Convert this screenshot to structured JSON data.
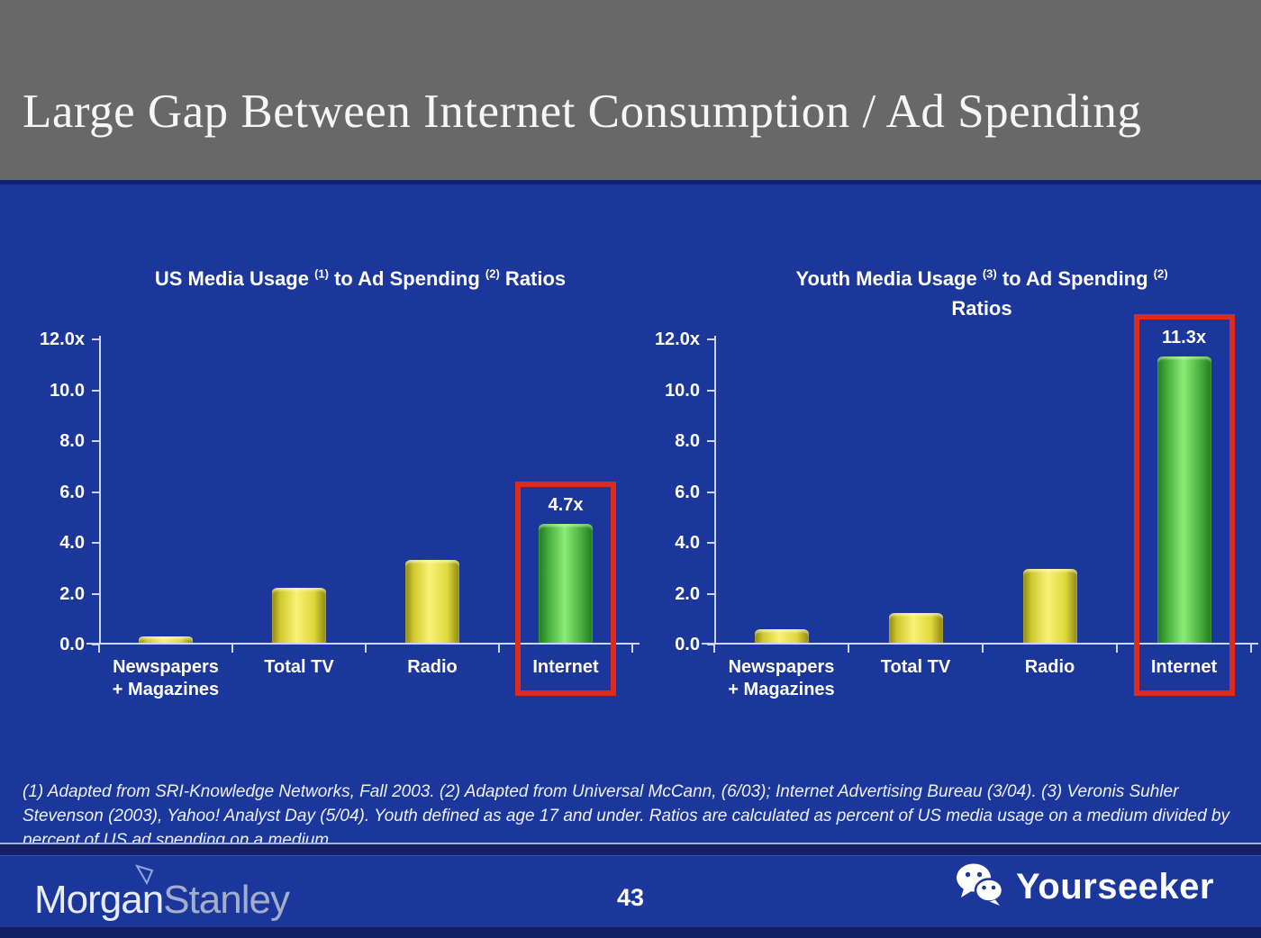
{
  "header": {
    "title": "Large Gap Between Internet Consumption / Ad Spending"
  },
  "colors": {
    "header_bg": "#686868",
    "slide_bg": "#1b379b",
    "accent_red": "#df2b1e",
    "axis": "#ccd6f2",
    "bar_yellow": "#f2ec55",
    "bar_green": "#63d452",
    "separator_dark": "#121f63",
    "footnote_text": "#eef1fa",
    "brand_bright": "#e8ecf8",
    "brand_dim": "#a3aecb",
    "text": "#ffffff"
  },
  "chart_data": [
    {
      "type": "bar",
      "title": "US Media Usage (1) to Ad Spending (2) Ratios",
      "title_parts": [
        {
          "t": "US Media Usage "
        },
        {
          "t": "(1)",
          "sup": true
        },
        {
          "t": " to Ad Spending "
        },
        {
          "t": "(2)",
          "sup": true
        },
        {
          "t": " Ratios"
        }
      ],
      "categories": [
        "Newspapers + Magazines",
        "Total TV",
        "Radio",
        "Internet"
      ],
      "category_lines": [
        [
          "Newspapers",
          "+ Magazines"
        ],
        [
          "Total TV"
        ],
        [
          "Radio"
        ],
        [
          "Internet"
        ]
      ],
      "values": [
        0.3,
        2.2,
        3.3,
        4.7
      ],
      "bar_colors": [
        "yellow",
        "yellow",
        "yellow",
        "green"
      ],
      "value_labels": [
        "",
        "",
        "",
        "4.7x"
      ],
      "highlight_index": 3,
      "xlabel": "",
      "ylabel": "",
      "ylim": [
        0,
        12
      ],
      "ytick_labels": [
        "12.0x",
        "10.0",
        "8.0",
        "6.0",
        "4.0",
        "2.0",
        "0.0"
      ],
      "grid": false,
      "legend": false
    },
    {
      "type": "bar",
      "title": "Youth Media Usage (3) to Ad Spending (2) Ratios",
      "title_parts": [
        {
          "t": "Youth Media Usage "
        },
        {
          "t": "(3)",
          "sup": true
        },
        {
          "t": " to Ad Spending "
        },
        {
          "t": "(2)",
          "sup": true
        },
        {
          "br": true
        },
        {
          "t": "Ratios"
        }
      ],
      "categories": [
        "Newspapers + Magazines",
        "Total TV",
        "Radio",
        "Internet"
      ],
      "category_lines": [
        [
          "Newspapers",
          "+ Magazines"
        ],
        [
          "Total TV"
        ],
        [
          "Radio"
        ],
        [
          "Internet"
        ]
      ],
      "values": [
        0.55,
        1.2,
        2.95,
        11.3
      ],
      "bar_colors": [
        "yellow",
        "yellow",
        "yellow",
        "green"
      ],
      "value_labels": [
        "",
        "",
        "",
        "11.3x"
      ],
      "highlight_index": 3,
      "xlabel": "",
      "ylabel": "",
      "ylim": [
        0,
        12
      ],
      "ytick_labels": [
        "12.0x",
        "10.0",
        "8.0",
        "6.0",
        "4.0",
        "2.0",
        "0.0"
      ],
      "grid": false,
      "legend": false
    }
  ],
  "footnote": {
    "text": "(1) Adapted from SRI-Knowledge Networks, Fall 2003.  (2) Adapted from Universal McCann, (6/03); Internet Advertising Bureau (3/04). (3) Veronis Suhler Stevenson (2003), Yahoo! Analyst Day (5/04).  Youth defined as age 17 and under.  Ratios are calculated as percent of US media usage on a medium divided by percent of US ad spending on a medium."
  },
  "footer": {
    "page_number": "43",
    "brand_part1": "Morgan",
    "brand_part2": "Stanley",
    "watermark": "Yourseeker"
  }
}
